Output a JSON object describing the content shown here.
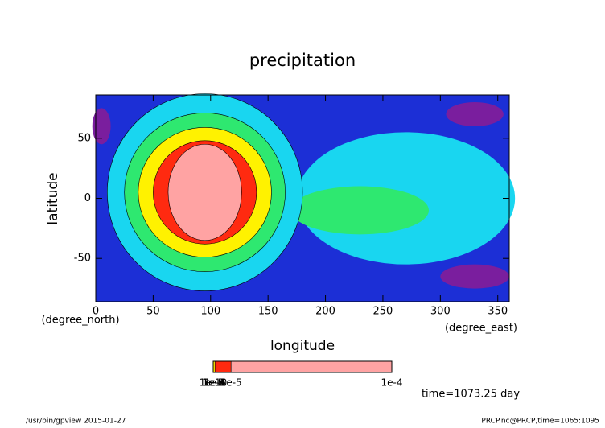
{
  "chart_data": {
    "type": "contour",
    "title": "precipitation",
    "x_label": "longitude",
    "x_units": "(degree_east)",
    "y_label": "latitude",
    "y_units": "(degree_north)",
    "xlim": [
      0,
      360
    ],
    "xticks": [
      0,
      50,
      100,
      150,
      200,
      250,
      300,
      350
    ],
    "ylim": [
      -86,
      86
    ],
    "yticks": [
      -50,
      0,
      50
    ],
    "levels": [
      {
        "value": 1e-10,
        "label": "1e-10"
      },
      {
        "value": 1e-09,
        "label": "1e-9"
      },
      {
        "value": 1e-08,
        "label": "1e-8"
      },
      {
        "value": 1e-07,
        "label": "1e-7"
      },
      {
        "value": 1e-06,
        "label": "1e-6"
      },
      {
        "value": 1e-05,
        "label": "1e-5"
      },
      {
        "value": 0.0001,
        "label": "1e-4"
      }
    ],
    "colors": [
      "#1c2fd6",
      "#19d6f0",
      "#2ee870",
      "#fff200",
      "#ff2a10",
      "#ffa3a3"
    ],
    "below_color": "#7a1e9e",
    "annotation": "time=1073.25 day",
    "footer_left": "/usr/bin/gpview  2015-01-27",
    "footer_right": "PRCP.nc@PRCP,time=1065:1095"
  }
}
